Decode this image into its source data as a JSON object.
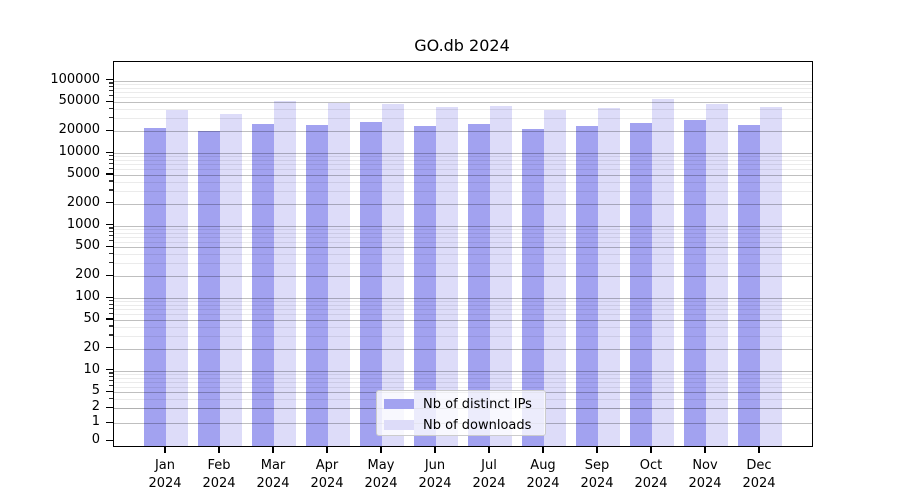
{
  "title": "GO.db 2024",
  "chart_data": {
    "type": "bar",
    "title": "GO.db 2024",
    "months": [
      "Jan",
      "Feb",
      "Mar",
      "Apr",
      "May",
      "Jun",
      "Jul",
      "Aug",
      "Sep",
      "Oct",
      "Nov",
      "Dec"
    ],
    "year": "2024",
    "series": [
      {
        "name": "Nb of distinct IPs",
        "color": "#a2a2f0",
        "values": [
          22300,
          20300,
          25500,
          24100,
          26400,
          23800,
          24900,
          21600,
          23800,
          26200,
          28400,
          24600
        ]
      },
      {
        "name": "Nb of downloads",
        "color": "#dddcf9",
        "values": [
          39000,
          35000,
          51500,
          49500,
          47000,
          43500,
          44500,
          39500,
          42000,
          56000,
          48000,
          43500
        ]
      }
    ],
    "y_axis": {
      "scale": "log",
      "ticks": [
        100000,
        50000,
        20000,
        10000,
        5000,
        2000,
        1000,
        500,
        200,
        100,
        50,
        20,
        10,
        5,
        2,
        1,
        0
      ],
      "ylim": [
        0,
        170000
      ],
      "grid": true
    },
    "x_axis": {
      "grid": false
    },
    "legend": {
      "position": "lower-center"
    }
  }
}
